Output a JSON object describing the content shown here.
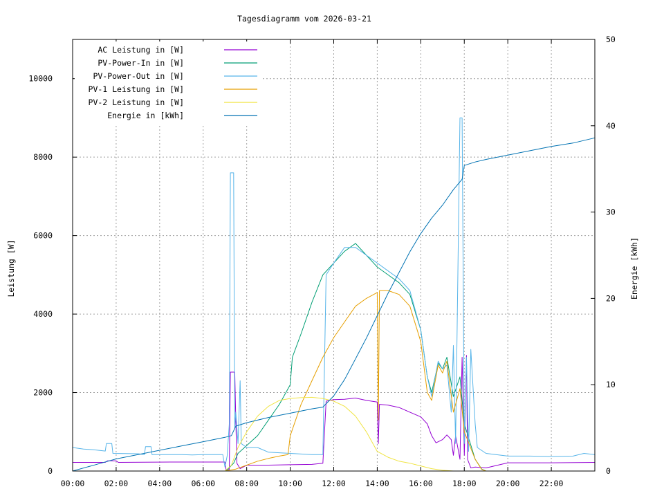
{
  "chart_data": {
    "type": "line",
    "title": "Tagesdiagramm vom 2026-03-21",
    "xlabel": "",
    "ylabel": "Leistung [W]",
    "y2label": "Energie [kWh]",
    "xlim": [
      0,
      24
    ],
    "ylim": [
      0,
      11000
    ],
    "y2lim": [
      0,
      50
    ],
    "x_ticks": [
      "00:00",
      "02:00",
      "04:00",
      "06:00",
      "08:00",
      "10:00",
      "12:00",
      "14:00",
      "16:00",
      "18:00",
      "20:00",
      "22:00"
    ],
    "x_tick_values": [
      0,
      2,
      4,
      6,
      8,
      10,
      12,
      14,
      16,
      18,
      20,
      22
    ],
    "y_ticks": [
      0,
      2000,
      4000,
      6000,
      8000,
      10000
    ],
    "y2_ticks": [
      0,
      10,
      20,
      30,
      40,
      50
    ],
    "grid": true,
    "legend_position": "top-left",
    "series": [
      {
        "name": "AC Leistung in [W]",
        "color": "#9400d3",
        "axis": "y1",
        "points": [
          [
            0,
            220
          ],
          [
            1.5,
            220
          ],
          [
            1.6,
            260
          ],
          [
            2,
            260
          ],
          [
            2.1,
            220
          ],
          [
            4.5,
            230
          ],
          [
            6.5,
            230
          ],
          [
            7,
            230
          ],
          [
            7.05,
            40
          ],
          [
            7.2,
            40
          ],
          [
            7.25,
            2520
          ],
          [
            7.45,
            2520
          ],
          [
            7.5,
            1300
          ],
          [
            7.55,
            200
          ],
          [
            7.7,
            60
          ],
          [
            8,
            150
          ],
          [
            9,
            150
          ],
          [
            10,
            160
          ],
          [
            11,
            170
          ],
          [
            11.5,
            200
          ],
          [
            11.65,
            1780
          ],
          [
            12,
            1820
          ],
          [
            12.5,
            1830
          ],
          [
            13,
            1860
          ],
          [
            13.5,
            1800
          ],
          [
            14,
            1760
          ],
          [
            14.05,
            700
          ],
          [
            14.1,
            1700
          ],
          [
            14.5,
            1680
          ],
          [
            15,
            1620
          ],
          [
            15.5,
            1500
          ],
          [
            16,
            1380
          ],
          [
            16.3,
            1200
          ],
          [
            16.5,
            900
          ],
          [
            16.7,
            720
          ],
          [
            17,
            800
          ],
          [
            17.2,
            920
          ],
          [
            17.4,
            800
          ],
          [
            17.5,
            400
          ],
          [
            17.6,
            900
          ],
          [
            17.8,
            300
          ],
          [
            17.9,
            2900
          ],
          [
            18,
            400
          ],
          [
            18.1,
            2950
          ],
          [
            18.15,
            300
          ],
          [
            18.3,
            80
          ],
          [
            18.5,
            100
          ],
          [
            19,
            80
          ],
          [
            20,
            210
          ],
          [
            22,
            210
          ],
          [
            24,
            220
          ]
        ]
      },
      {
        "name": "PV-Power-In in [W]",
        "color": "#009e73",
        "axis": "y1",
        "points": [
          [
            0,
            0
          ],
          [
            7,
            0
          ],
          [
            7.1,
            30
          ],
          [
            7.4,
            200
          ],
          [
            7.6,
            450
          ],
          [
            8,
            650
          ],
          [
            8.5,
            900
          ],
          [
            9,
            1300
          ],
          [
            9.5,
            1700
          ],
          [
            10,
            2200
          ],
          [
            10.1,
            2900
          ],
          [
            10.5,
            3500
          ],
          [
            11,
            4300
          ],
          [
            11.5,
            5000
          ],
          [
            12,
            5300
          ],
          [
            12.5,
            5600
          ],
          [
            13,
            5800
          ],
          [
            13.5,
            5500
          ],
          [
            14,
            5200
          ],
          [
            14.5,
            5000
          ],
          [
            15,
            4800
          ],
          [
            15.5,
            4500
          ],
          [
            16,
            3600
          ],
          [
            16.3,
            2400
          ],
          [
            16.5,
            2000
          ],
          [
            16.8,
            2750
          ],
          [
            17,
            2600
          ],
          [
            17.2,
            2900
          ],
          [
            17.5,
            1900
          ],
          [
            17.8,
            2400
          ],
          [
            18,
            1200
          ],
          [
            18.5,
            300
          ],
          [
            18.8,
            50
          ],
          [
            19,
            0
          ],
          [
            24,
            0
          ]
        ]
      },
      {
        "name": "PV-Power-Out in [W]",
        "color": "#56b4e9",
        "axis": "y1",
        "points": [
          [
            0,
            600
          ],
          [
            0.5,
            560
          ],
          [
            1,
            540
          ],
          [
            1.5,
            510
          ],
          [
            1.55,
            700
          ],
          [
            1.8,
            700
          ],
          [
            1.85,
            450
          ],
          [
            3,
            440
          ],
          [
            3.3,
            420
          ],
          [
            3.35,
            620
          ],
          [
            3.6,
            620
          ],
          [
            3.65,
            420
          ],
          [
            5,
            420
          ],
          [
            5.5,
            410
          ],
          [
            6,
            420
          ],
          [
            6.9,
            420
          ],
          [
            7,
            100
          ],
          [
            7.1,
            380
          ],
          [
            7.2,
            1200
          ],
          [
            7.25,
            7600
          ],
          [
            7.4,
            7600
          ],
          [
            7.45,
            1100
          ],
          [
            7.5,
            1500
          ],
          [
            7.6,
            700
          ],
          [
            7.7,
            2300
          ],
          [
            7.75,
            700
          ],
          [
            8,
            600
          ],
          [
            8.5,
            600
          ],
          [
            9,
            480
          ],
          [
            10,
            450
          ],
          [
            11,
            420
          ],
          [
            11.5,
            420
          ],
          [
            11.65,
            5000
          ],
          [
            12,
            5300
          ],
          [
            12.5,
            5700
          ],
          [
            13,
            5700
          ],
          [
            13.5,
            5500
          ],
          [
            14,
            5300
          ],
          [
            14.5,
            5100
          ],
          [
            15,
            4900
          ],
          [
            15.5,
            4600
          ],
          [
            16,
            3600
          ],
          [
            16.3,
            2400
          ],
          [
            16.5,
            1900
          ],
          [
            16.8,
            2800
          ],
          [
            17,
            2600
          ],
          [
            17.2,
            2700
          ],
          [
            17.4,
            1500
          ],
          [
            17.5,
            3200
          ],
          [
            17.6,
            700
          ],
          [
            17.8,
            9000
          ],
          [
            17.9,
            9000
          ],
          [
            18,
            700
          ],
          [
            18.1,
            2900
          ],
          [
            18.2,
            500
          ],
          [
            18.3,
            3100
          ],
          [
            18.5,
            1200
          ],
          [
            18.6,
            600
          ],
          [
            19,
            450
          ],
          [
            20,
            380
          ],
          [
            21,
            380
          ],
          [
            22,
            370
          ],
          [
            23,
            380
          ],
          [
            23.5,
            450
          ],
          [
            24,
            420
          ]
        ]
      },
      {
        "name": "PV-1 Leistung in [W]",
        "color": "#e69f00",
        "axis": "y1",
        "points": [
          [
            0,
            0
          ],
          [
            7,
            0
          ],
          [
            7.5,
            50
          ],
          [
            8,
            150
          ],
          [
            8.5,
            250
          ],
          [
            9,
            320
          ],
          [
            9.5,
            380
          ],
          [
            9.9,
            420
          ],
          [
            10,
            900
          ],
          [
            10.5,
            1700
          ],
          [
            11,
            2300
          ],
          [
            11.5,
            2900
          ],
          [
            12,
            3400
          ],
          [
            12.5,
            3800
          ],
          [
            13,
            4200
          ],
          [
            13.5,
            4400
          ],
          [
            14,
            4550
          ],
          [
            14.05,
            1300
          ],
          [
            14.1,
            4600
          ],
          [
            14.5,
            4600
          ],
          [
            15,
            4500
          ],
          [
            15.5,
            4200
          ],
          [
            16,
            3300
          ],
          [
            16.3,
            2000
          ],
          [
            16.5,
            1800
          ],
          [
            16.8,
            2700
          ],
          [
            17,
            2500
          ],
          [
            17.2,
            2800
          ],
          [
            17.5,
            1500
          ],
          [
            17.8,
            2100
          ],
          [
            18,
            1000
          ],
          [
            18.5,
            300
          ],
          [
            18.8,
            40
          ],
          [
            19,
            0
          ],
          [
            24,
            0
          ]
        ]
      },
      {
        "name": "PV-2 Leistung in [W]",
        "color": "#f0e442",
        "axis": "y1",
        "points": [
          [
            0,
            0
          ],
          [
            7,
            0
          ],
          [
            7.3,
            150
          ],
          [
            7.6,
            600
          ],
          [
            8,
            1000
          ],
          [
            8.5,
            1400
          ],
          [
            9,
            1650
          ],
          [
            9.5,
            1800
          ],
          [
            10,
            1850
          ],
          [
            10.5,
            1870
          ],
          [
            11,
            1880
          ],
          [
            11.5,
            1850
          ],
          [
            12,
            1780
          ],
          [
            12.5,
            1650
          ],
          [
            13,
            1400
          ],
          [
            13.5,
            1000
          ],
          [
            14,
            500
          ],
          [
            14.5,
            350
          ],
          [
            15,
            250
          ],
          [
            15.5,
            200
          ],
          [
            16,
            130
          ],
          [
            16.5,
            60
          ],
          [
            17,
            20
          ],
          [
            17.5,
            0
          ],
          [
            24,
            0
          ]
        ]
      },
      {
        "name": "Energie in [kWh]",
        "color": "#0072b2",
        "axis": "y2",
        "points": [
          [
            0,
            0
          ],
          [
            1,
            0.7
          ],
          [
            2,
            1.4
          ],
          [
            3,
            1.9
          ],
          [
            4,
            2.4
          ],
          [
            5,
            2.9
          ],
          [
            6,
            3.4
          ],
          [
            7,
            3.9
          ],
          [
            7.3,
            4.1
          ],
          [
            7.5,
            5.2
          ],
          [
            8,
            5.6
          ],
          [
            9,
            6.2
          ],
          [
            10,
            6.7
          ],
          [
            11,
            7.2
          ],
          [
            11.5,
            7.4
          ],
          [
            12,
            8.7
          ],
          [
            12.5,
            10.6
          ],
          [
            13,
            13
          ],
          [
            13.5,
            15.4
          ],
          [
            14,
            18
          ],
          [
            14.5,
            20.6
          ],
          [
            15,
            23
          ],
          [
            15.5,
            25.4
          ],
          [
            16,
            27.5
          ],
          [
            16.5,
            29.3
          ],
          [
            17,
            30.8
          ],
          [
            17.5,
            32.6
          ],
          [
            17.9,
            33.8
          ],
          [
            18,
            35.4
          ],
          [
            18.5,
            35.8
          ],
          [
            19,
            36.1
          ],
          [
            20,
            36.6
          ],
          [
            21,
            37.1
          ],
          [
            22,
            37.6
          ],
          [
            23,
            38
          ],
          [
            24,
            38.6
          ]
        ]
      }
    ]
  }
}
